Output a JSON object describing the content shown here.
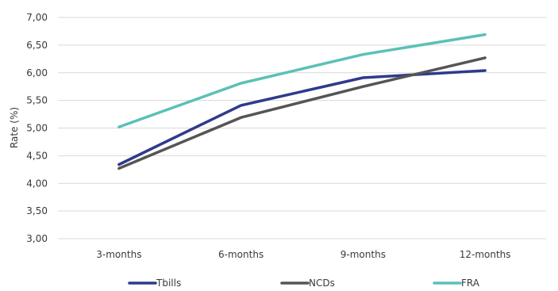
{
  "chart_data": {
    "type": "line",
    "title": "",
    "xlabel": "",
    "ylabel": "Rate (%)",
    "categories": [
      "3-months",
      "6-months",
      "9-months",
      "12-months"
    ],
    "ylim": [
      3.0,
      7.0
    ],
    "yticks": [
      "3,00",
      "3,50",
      "4,00",
      "4,50",
      "5,00",
      "5,50",
      "6,00",
      "6,50",
      "7,00"
    ],
    "ytick_values": [
      3.0,
      3.5,
      4.0,
      4.5,
      5.0,
      5.5,
      6.0,
      6.5,
      7.0
    ],
    "grid": true,
    "legend_position": "bottom",
    "series": [
      {
        "name": "Tbills",
        "color": "#2e3a8c",
        "values": [
          4.34,
          5.41,
          5.91,
          6.04
        ]
      },
      {
        "name": "NCDs",
        "color": "#555555",
        "values": [
          4.27,
          5.19,
          5.75,
          6.27
        ]
      },
      {
        "name": "FRA",
        "color": "#5bc0b8",
        "values": [
          5.02,
          5.81,
          6.33,
          6.69
        ]
      }
    ]
  }
}
